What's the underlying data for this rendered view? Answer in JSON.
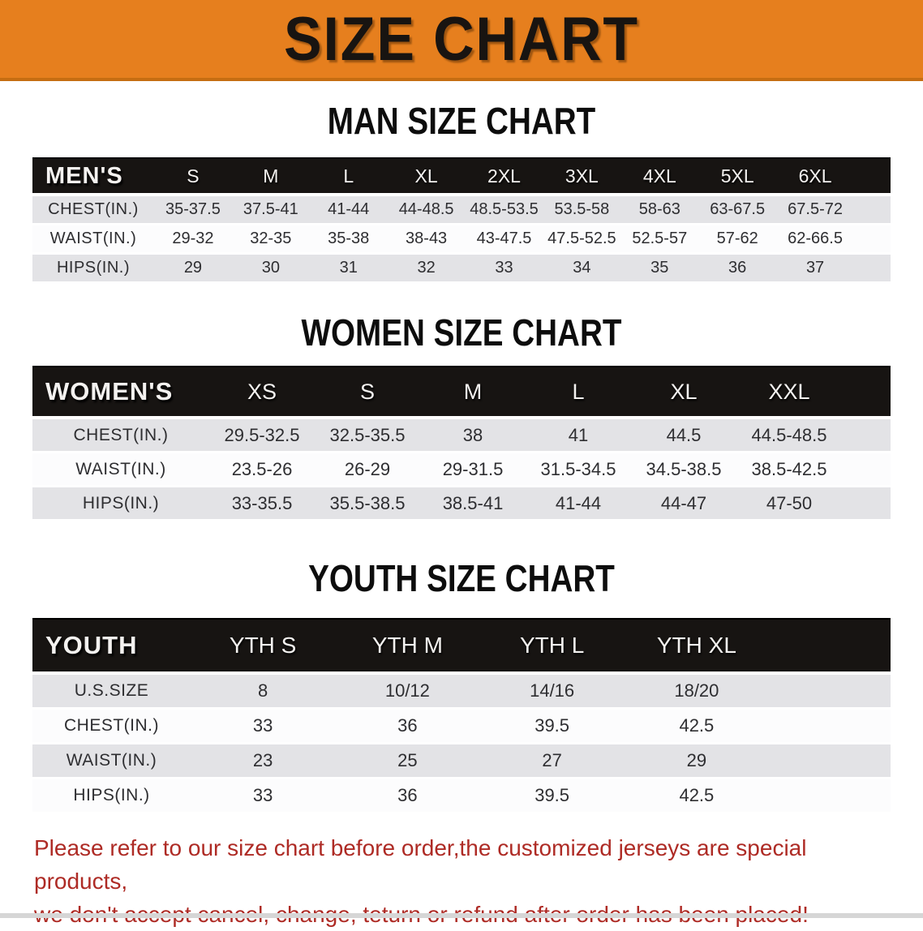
{
  "banner": {
    "title": "SIZE CHART",
    "bg_color": "#E67F1E",
    "border_color": "#C56D12"
  },
  "colors": {
    "table_header_bg": "#171412",
    "row_gray": "#E3E3E6",
    "row_white": "#FCFCFD",
    "heading_text": "#0D0D0D",
    "disclaimer_red": "#AE2B25"
  },
  "sections": [
    {
      "id": "men",
      "heading": "MAN SIZE CHART",
      "table": {
        "label": "MEN'S",
        "columns": [
          "S",
          "M",
          "L",
          "XL",
          "2XL",
          "3XL",
          "4XL",
          "5XL",
          "6XL"
        ],
        "rows": [
          {
            "label": "CHEST(IN.)",
            "values": [
              "35-37.5",
              "37.5-41",
              "41-44",
              "44-48.5",
              "48.5-53.5",
              "53.5-58",
              "58-63",
              "63-67.5",
              "67.5-72"
            ]
          },
          {
            "label": "WAIST(IN.)",
            "values": [
              "29-32",
              "32-35",
              "35-38",
              "38-43",
              "43-47.5",
              "47.5-52.5",
              "52.5-57",
              "57-62",
              "62-66.5"
            ]
          },
          {
            "label": "HIPS(IN.)",
            "values": [
              "29",
              "30",
              "31",
              "32",
              "33",
              "34",
              "35",
              "36",
              "37"
            ]
          }
        ]
      }
    },
    {
      "id": "women",
      "heading": "WOMEN SIZE CHART",
      "table": {
        "label": "WOMEN'S",
        "columns": [
          "XS",
          "S",
          "M",
          "L",
          "XL",
          "XXL"
        ],
        "rows": [
          {
            "label": "CHEST(IN.)",
            "values": [
              "29.5-32.5",
              "32.5-35.5",
              "38",
              "41",
              "44.5",
              "44.5-48.5"
            ]
          },
          {
            "label": "WAIST(IN.)",
            "values": [
              "23.5-26",
              "26-29",
              "29-31.5",
              "31.5-34.5",
              "34.5-38.5",
              "38.5-42.5"
            ]
          },
          {
            "label": "HIPS(IN.)",
            "values": [
              "33-35.5",
              "35.5-38.5",
              "38.5-41",
              "41-44",
              "44-47",
              "47-50"
            ]
          }
        ]
      }
    },
    {
      "id": "youth",
      "heading": "YOUTH SIZE CHART",
      "table": {
        "label": "YOUTH",
        "columns": [
          "YTH S",
          "YTH M",
          "YTH L",
          "YTH XL"
        ],
        "rows": [
          {
            "label": "U.S.SIZE",
            "values": [
              "8",
              "10/12",
              "14/16",
              "18/20"
            ]
          },
          {
            "label": "CHEST(IN.)",
            "values": [
              "33",
              "36",
              "39.5",
              "42.5"
            ]
          },
          {
            "label": "WAIST(IN.)",
            "values": [
              "23",
              "25",
              "27",
              "29"
            ]
          },
          {
            "label": "HIPS(IN.)",
            "values": [
              "33",
              "36",
              "39.5",
              "42.5"
            ]
          }
        ]
      }
    }
  ],
  "disclaimer": {
    "line1": "Please refer to our size chart before order,the customized jerseys are special products,",
    "line2": "we don't accept cancel, change, teturn or refund after order has been placed!"
  }
}
